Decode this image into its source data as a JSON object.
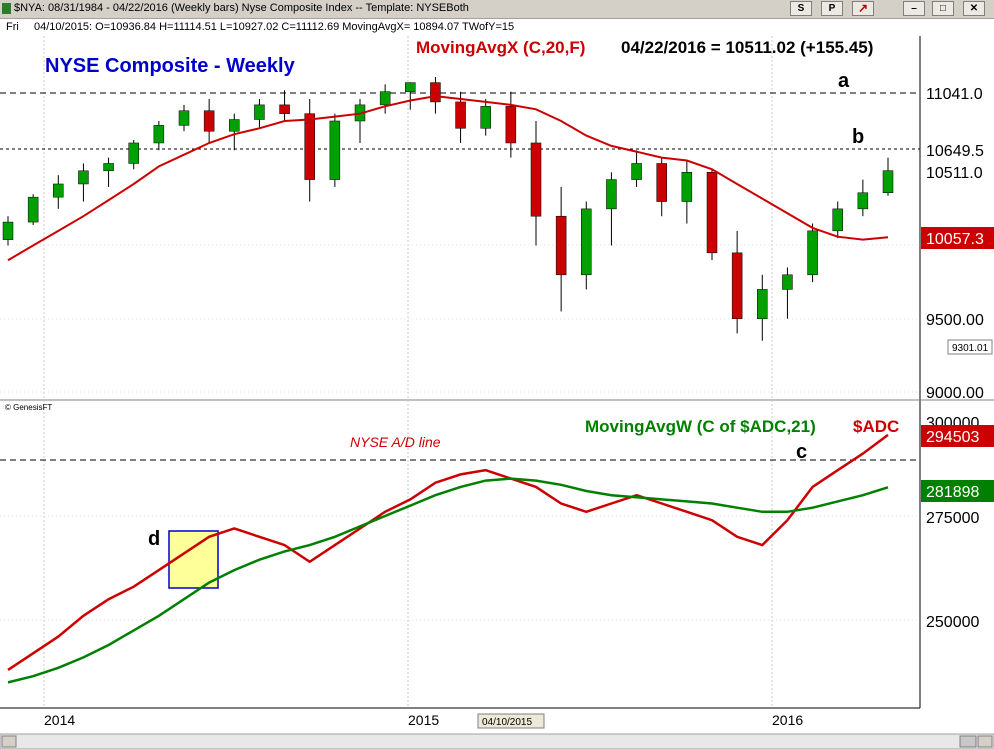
{
  "window": {
    "title": "$NYA: 08/31/1984 - 04/22/2016 (Weekly bars)  Nyse Composite Index  --  Template: NYSEBoth",
    "buttons": [
      "S",
      "P"
    ]
  },
  "info_bar": {
    "day": "Fri",
    "text": "04/10/2015:  O=10936.84  H=11114.51  L=10927.02  C=11112.69  MovingAvgX= 10894.07  TWofY=15"
  },
  "price_panel": {
    "title": "NYSE Composite - Weekly",
    "ma_label": "MovingAvgX (C,20,F)",
    "ma_value_label": "04/22/2016 = 10511.02 (+155.45)",
    "y_tick_labels": [
      "9000.00",
      "9500.00",
      "10649.5",
      "11041.0"
    ],
    "price_tags": {
      "last": "10511.0",
      "ma": "10057.3",
      "small": "9301.01"
    },
    "levels": [
      {
        "label": "a",
        "value": 11041
      },
      {
        "label": "b",
        "value": 10649.5
      }
    ],
    "watermark": "© GenesisFT",
    "colors": {
      "candle": "#00a000",
      "ma": "#cc0000",
      "title": "#0000cc"
    }
  },
  "ad_panel": {
    "title": "NYSE A/D line",
    "ma_label": "MovingAvgW (C of $ADC,21)",
    "series_label": "$ADC",
    "y_tick_labels": [
      "300000",
      "275000",
      "250000"
    ],
    "price_tags": {
      "adc": "294503",
      "ma": "281898"
    },
    "markers": [
      {
        "label": "c"
      },
      {
        "label": "d"
      }
    ],
    "colors": {
      "adc": "#cc0000",
      "ma": "#008000",
      "box": "#ffff99",
      "box_border": "#0000cc"
    }
  },
  "x_axis": {
    "labels": [
      "2014",
      "2015",
      "2016"
    ],
    "cursor_date": "04/10/2015"
  },
  "chart_data": [
    {
      "type": "candlestick",
      "title": "NYSE Composite - Weekly",
      "ylim": [
        8900,
        11300
      ],
      "series": [
        {
          "name": "NYA",
          "ohlc_approx": [
            [
              10040,
              10200,
              10000,
              10160
            ],
            [
              10160,
              10350,
              10140,
              10330
            ],
            [
              10330,
              10480,
              10250,
              10420
            ],
            [
              10420,
              10560,
              10300,
              10510
            ],
            [
              10510,
              10600,
              10400,
              10560
            ],
            [
              10560,
              10720,
              10520,
              10700
            ],
            [
              10700,
              10850,
              10650,
              10820
            ],
            [
              10820,
              10960,
              10780,
              10920
            ],
            [
              10920,
              11000,
              10700,
              10780
            ],
            [
              10780,
              10900,
              10650,
              10860
            ],
            [
              10860,
              11000,
              10800,
              10960
            ],
            [
              10960,
              11060,
              10850,
              10900
            ],
            [
              10900,
              11000,
              10300,
              10450
            ],
            [
              10450,
              10900,
              10400,
              10850
            ],
            [
              10850,
              11000,
              10700,
              10960
            ],
            [
              10960,
              11100,
              10900,
              11050
            ],
            [
              11050,
              11114,
              10927,
              11112
            ],
            [
              11112,
              11150,
              10900,
              10980
            ],
            [
              10980,
              11050,
              10700,
              10800
            ],
            [
              10800,
              11000,
              10750,
              10950
            ],
            [
              10950,
              11050,
              10600,
              10700
            ],
            [
              10700,
              10850,
              10000,
              10200
            ],
            [
              10200,
              10400,
              9550,
              9800
            ],
            [
              9800,
              10300,
              9700,
              10250
            ],
            [
              10250,
              10500,
              10000,
              10450
            ],
            [
              10450,
              10650,
              10400,
              10560
            ],
            [
              10560,
              10600,
              10200,
              10300
            ],
            [
              10300,
              10580,
              10150,
              10500
            ],
            [
              10500,
              10520,
              9900,
              9950
            ],
            [
              9950,
              10100,
              9400,
              9500
            ],
            [
              9500,
              9800,
              9350,
              9700
            ],
            [
              9700,
              9850,
              9500,
              9800
            ],
            [
              9800,
              10150,
              9750,
              10100
            ],
            [
              10100,
              10300,
              10050,
              10250
            ],
            [
              10250,
              10450,
              10200,
              10360
            ],
            [
              10360,
              10600,
              10340,
              10511
            ]
          ]
        },
        {
          "name": "MovingAvgX (C,20,F)",
          "values": [
            9900,
            10000,
            10100,
            10200,
            10310,
            10420,
            10540,
            10620,
            10700,
            10760,
            10800,
            10850,
            10860,
            10880,
            10900,
            10950,
            10990,
            11020,
            11000,
            10980,
            10960,
            10930,
            10850,
            10750,
            10680,
            10640,
            10600,
            10580,
            10520,
            10420,
            10320,
            10220,
            10120,
            10060,
            10040,
            10057
          ]
        }
      ]
    },
    {
      "type": "line",
      "title": "NYSE A/D line",
      "ylim": [
        232000,
        305000
      ],
      "series": [
        {
          "name": "$ADC",
          "values": [
            238000,
            242000,
            246000,
            251000,
            255000,
            258000,
            262000,
            266000,
            270000,
            272000,
            270000,
            268000,
            264000,
            268000,
            272000,
            276000,
            279000,
            283000,
            285000,
            286000,
            284000,
            282000,
            278000,
            276000,
            278000,
            280000,
            278000,
            276000,
            274000,
            270000,
            268000,
            274000,
            282000,
            286000,
            290000,
            294503
          ]
        },
        {
          "name": "MovingAvgW (C of $ADC,21)",
          "values": [
            235000,
            236500,
            238500,
            241000,
            244000,
            247500,
            251000,
            255000,
            259000,
            262000,
            264500,
            266500,
            268000,
            270000,
            272500,
            275000,
            277500,
            280000,
            282000,
            283500,
            284000,
            283500,
            282500,
            281000,
            280000,
            279500,
            279000,
            278500,
            278000,
            277000,
            276000,
            276000,
            277000,
            278500,
            280000,
            281898
          ]
        }
      ]
    }
  ]
}
